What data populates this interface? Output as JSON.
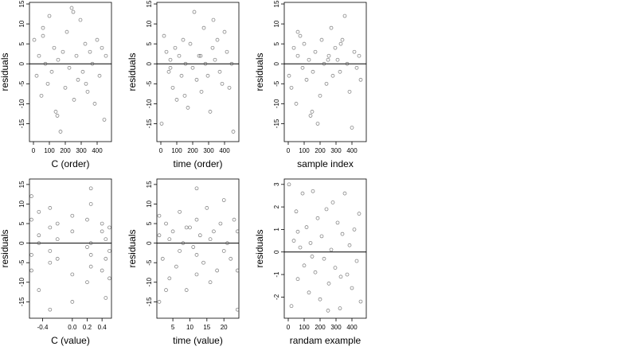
{
  "chart_data": [
    {
      "type": "scatter",
      "xlabel": "C (order)",
      "ylabel": "residuals",
      "color": "#555555",
      "hline": 0,
      "xlim": [
        -25,
        490
      ],
      "ylim": [
        -19.5,
        15.4
      ],
      "xticks": [
        0,
        100,
        200,
        300,
        400
      ],
      "yticks": [
        -15,
        -10,
        -5,
        0,
        5,
        10,
        15
      ],
      "x": [
        5,
        20,
        35,
        50,
        60,
        75,
        90,
        100,
        115,
        130,
        140,
        155,
        170,
        185,
        200,
        210,
        225,
        240,
        255,
        270,
        280,
        295,
        310,
        325,
        340,
        355,
        370,
        385,
        400,
        415,
        430,
        445,
        455,
        250,
        150,
        60,
        330
      ],
      "values": [
        6,
        -3,
        2,
        -8,
        9,
        0,
        -5,
        12,
        -2,
        4,
        -12,
        1,
        -17,
        3,
        -6,
        8,
        -1,
        14,
        -9,
        2,
        -4,
        11,
        -2,
        5,
        -7,
        3,
        0,
        -10,
        6,
        -3,
        4,
        -14,
        2,
        13,
        -13,
        7,
        -5
      ]
    },
    {
      "type": "scatter",
      "xlabel": "time (order)",
      "ylabel": "residuals",
      "color": "#555555",
      "hline": 0,
      "xlim": [
        -25,
        490
      ],
      "ylim": [
        -19.5,
        15.4
      ],
      "xticks": [
        0,
        100,
        200,
        300,
        400
      ],
      "yticks": [
        -15,
        -10,
        -5,
        0,
        5,
        10,
        15
      ],
      "x": [
        5,
        20,
        35,
        50,
        60,
        75,
        90,
        100,
        115,
        130,
        140,
        155,
        170,
        185,
        200,
        210,
        225,
        240,
        255,
        270,
        280,
        295,
        310,
        325,
        340,
        355,
        370,
        385,
        400,
        415,
        430,
        445,
        455,
        250,
        150,
        60,
        330
      ],
      "values": [
        -15,
        7,
        3,
        -2,
        1,
        -6,
        4,
        -9,
        2,
        -3,
        6,
        0,
        -11,
        5,
        -1,
        13,
        -4,
        2,
        -7,
        9,
        0,
        -3,
        -12,
        4,
        1,
        6,
        -2,
        -5,
        8,
        3,
        -6,
        0,
        -17,
        2,
        -8,
        -1,
        11
      ]
    },
    {
      "type": "scatter",
      "xlabel": "sample index",
      "ylabel": "residuals",
      "color": "#555555",
      "hline": 0,
      "xlim": [
        -25,
        490
      ],
      "ylim": [
        -19.5,
        15.4
      ],
      "xticks": [
        0,
        100,
        200,
        300,
        400
      ],
      "yticks": [
        -15,
        -10,
        -5,
        0,
        5,
        10,
        15
      ],
      "x": [
        5,
        20,
        35,
        50,
        60,
        75,
        90,
        100,
        115,
        130,
        140,
        155,
        170,
        185,
        200,
        210,
        225,
        240,
        255,
        270,
        280,
        295,
        310,
        325,
        340,
        355,
        370,
        385,
        400,
        415,
        430,
        445,
        455,
        250,
        150,
        60,
        330
      ],
      "values": [
        -3,
        -6,
        4,
        -10,
        2,
        7,
        -1,
        5,
        -4,
        1,
        -13,
        -2,
        3,
        -15,
        -8,
        6,
        0,
        -5,
        2,
        9,
        -3,
        4,
        1,
        -2,
        6,
        12,
        0,
        -7,
        -16,
        3,
        -1,
        2,
        -4,
        1,
        -12,
        8,
        5
      ]
    },
    {
      "type": "scatter",
      "xlabel": "C (value)",
      "ylabel": "residuals",
      "color": "#555555",
      "hline": 0,
      "xlim": [
        -0.577,
        0.527
      ],
      "ylim": [
        -19.2,
        16.4
      ],
      "xticks": [
        -0.4,
        {
          "value": 0,
          "label": "0.0"
        },
        0.2,
        0.4
      ],
      "yticks": [
        -15,
        -10,
        -5,
        0,
        5,
        10,
        15
      ],
      "x": [
        -0.55,
        -0.55,
        -0.55,
        -0.55,
        -0.45,
        -0.45,
        -0.45,
        -0.45,
        -0.3,
        -0.3,
        -0.3,
        -0.3,
        -0.3,
        -0.2,
        -0.2,
        -0.2,
        0,
        0,
        0,
        0,
        0.2,
        0.2,
        0.2,
        0.25,
        0.25,
        0.25,
        0.25,
        0.25,
        0.4,
        0.4,
        0.4,
        0.45,
        0.45,
        0.45,
        0.5,
        0.5,
        0.5
      ],
      "values": [
        6,
        -3,
        12,
        -7,
        2,
        -12,
        8,
        0,
        -5,
        4,
        -17,
        9,
        -2,
        5,
        -4,
        1,
        -15,
        3,
        -8,
        7,
        -1,
        6,
        -10,
        14,
        -3,
        0,
        10,
        -6,
        3,
        -7,
        5,
        -14,
        1,
        -4,
        4,
        -2,
        -9
      ]
    },
    {
      "type": "scatter",
      "xlabel": "time (value)",
      "ylabel": "residuals",
      "color": "#555555",
      "hline": 0,
      "xlim": [
        0.3,
        24.4
      ],
      "ylim": [
        -19.2,
        16.4
      ],
      "xticks": [
        5,
        10,
        15,
        20
      ],
      "yticks": [
        -15,
        -10,
        -5,
        0,
        5,
        10,
        15
      ],
      "x": [
        1,
        1,
        1,
        2,
        3,
        4,
        4,
        5,
        6,
        7,
        7,
        8,
        9,
        10,
        11,
        12,
        12,
        12,
        12,
        13,
        14,
        15,
        16,
        16,
        17,
        18,
        19,
        20,
        20,
        21,
        22,
        23,
        24,
        24,
        24,
        3,
        9
      ],
      "values": [
        7,
        -15,
        2,
        -4,
        5,
        -9,
        1,
        3,
        -6,
        8,
        -2,
        0,
        -12,
        4,
        -1,
        14,
        -3,
        6,
        -8,
        2,
        -5,
        9,
        -10,
        1,
        3,
        -7,
        5,
        -2,
        11,
        0,
        -4,
        6,
        -17,
        3,
        -7,
        -12,
        4
      ]
    },
    {
      "type": "scatter",
      "xlabel": "randam example",
      "ylabel": "residuals",
      "color": "#555555",
      "hline": 0,
      "xlim": [
        -25,
        490
      ],
      "ylim": [
        -2.94,
        3.24
      ],
      "xticks": [
        0,
        100,
        200,
        300,
        400
      ],
      "yticks": [
        -2,
        -1,
        0,
        1,
        2,
        3
      ],
      "x": [
        5,
        20,
        35,
        50,
        60,
        75,
        90,
        100,
        115,
        130,
        140,
        155,
        170,
        185,
        200,
        210,
        225,
        240,
        255,
        270,
        280,
        295,
        310,
        325,
        340,
        355,
        370,
        385,
        400,
        415,
        430,
        445,
        455,
        250,
        150,
        60,
        330
      ],
      "values": [
        3,
        -2.4,
        0.5,
        1.8,
        -1.2,
        0.2,
        2.6,
        -0.6,
        1.1,
        -1.8,
        0.4,
        2.7,
        -0.9,
        1.5,
        -2.1,
        0.7,
        -0.3,
        1.9,
        -1.4,
        0.1,
        2.2,
        -0.7,
        1.3,
        -2.5,
        0.8,
        2.6,
        -1,
        0.3,
        -1.6,
        1,
        -0.4,
        1.7,
        -2.2,
        -2.6,
        -0.2,
        0.9,
        -1.1
      ]
    }
  ]
}
